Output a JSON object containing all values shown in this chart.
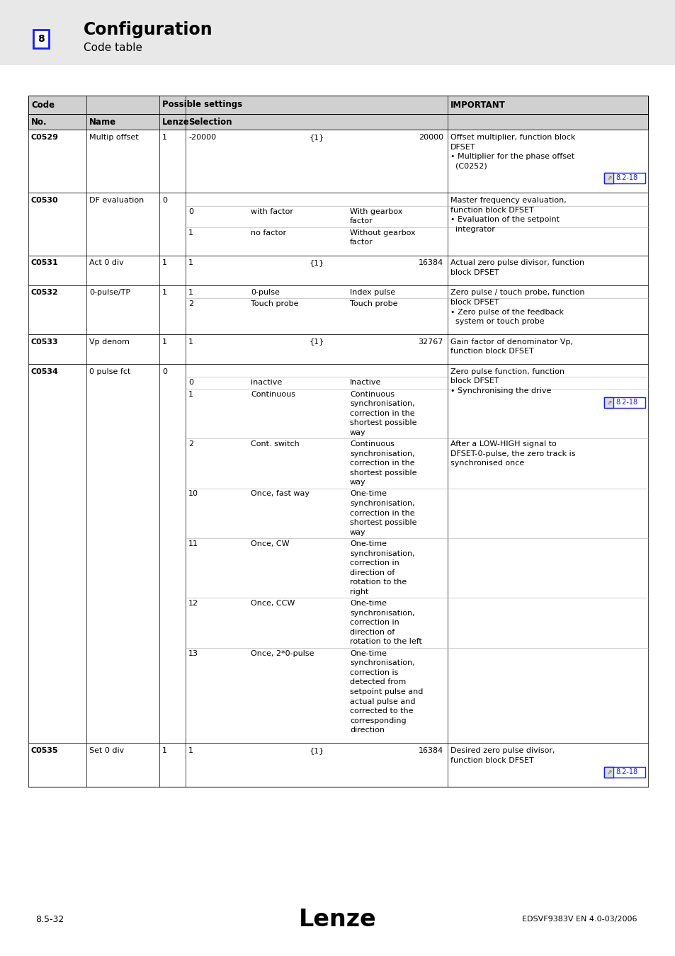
{
  "page_bg": "#e8e8e8",
  "content_bg": "#ffffff",
  "header_bg": "#d0d0d0",
  "link_color": "#1a1aff",
  "text_color": "#000000",
  "title": "Configuration",
  "subtitle": "Code table",
  "section_num": "8",
  "section_sub": "8.5",
  "footer_left": "8.5-32",
  "footer_center": "Lenze",
  "footer_right": "EDSVF9383V EN 4.0-03/2006",
  "rows": [
    {
      "code": "C0529",
      "name": "Multip offset",
      "lenze": "1",
      "sel_num": "-20000",
      "sel_mid": "{1}",
      "sel_val": "20000",
      "important": "Offset multiplier, function block\nDFSET\n• Multiplier for the phase offset\n  (C0252)",
      "link": "8.2-18",
      "subrows": []
    },
    {
      "code": "C0530",
      "name": "DF evaluation",
      "lenze": "0",
      "sel_num": "",
      "sel_mid": "",
      "sel_val": "",
      "important": "Master frequency evaluation,\nfunction block DFSET\n• Evaluation of the setpoint\n  integrator",
      "link": "",
      "subrows": [
        {
          "sel_num": "0",
          "sel_name": "with factor",
          "sel_desc": "With gearbox\nfactor",
          "important_extra": ""
        },
        {
          "sel_num": "1",
          "sel_name": "no factor",
          "sel_desc": "Without gearbox\nfactor",
          "important_extra": ""
        }
      ]
    },
    {
      "code": "C0531",
      "name": "Act 0 div",
      "lenze": "1",
      "sel_num": "1",
      "sel_mid": "{1}",
      "sel_val": "16384",
      "important": "Actual zero pulse divisor, function\nblock DFSET",
      "link": "",
      "subrows": []
    },
    {
      "code": "C0532",
      "name": "0-pulse/TP",
      "lenze": "1",
      "sel_num": "1",
      "sel_mid": "0-pulse",
      "sel_val": "Index pulse",
      "important": "Zero pulse / touch probe, function\nblock DFSET\n• Zero pulse of the feedback\n  system or touch probe",
      "link": "",
      "subrows": [
        {
          "sel_num": "2",
          "sel_name": "Touch probe",
          "sel_desc": "Touch probe",
          "important_extra": ""
        }
      ]
    },
    {
      "code": "C0533",
      "name": "Vp denom",
      "lenze": "1",
      "sel_num": "1",
      "sel_mid": "{1}",
      "sel_val": "32767",
      "important": "Gain factor of denominator Vp,\nfunction block DFSET",
      "link": "",
      "subrows": []
    },
    {
      "code": "C0534",
      "name": "0 pulse fct",
      "lenze": "0",
      "sel_num": "",
      "sel_mid": "",
      "sel_val": "",
      "important": "Zero pulse function, function\nblock DFSET\n• Synchronising the drive",
      "link": "8.2-18",
      "subrows": [
        {
          "sel_num": "0",
          "sel_name": "inactive",
          "sel_desc": "Inactive",
          "important_extra": ""
        },
        {
          "sel_num": "1",
          "sel_name": "Continuous",
          "sel_desc": "Continuous\nsynchronisation,\ncorrection in the\nshortest possible\nway",
          "important_extra": ""
        },
        {
          "sel_num": "2",
          "sel_name": "Cont. switch",
          "sel_desc": "Continuous\nsynchronisation,\ncorrection in the\nshortest possible\nway",
          "important_extra": "After a LOW-HIGH signal to\nDFSET-0-pulse, the zero track is\nsynchronised once"
        },
        {
          "sel_num": "10",
          "sel_name": "Once, fast way",
          "sel_desc": "One-time\nsynchronisation,\ncorrection in the\nshortest possible\nway",
          "important_extra": ""
        },
        {
          "sel_num": "11",
          "sel_name": "Once, CW",
          "sel_desc": "One-time\nsynchronisation,\ncorrection in\ndirection of\nrotation to the\nright",
          "important_extra": ""
        },
        {
          "sel_num": "12",
          "sel_name": "Once, CCW",
          "sel_desc": "One-time\nsynchronisation,\ncorrection in\ndirection of\nrotation to the left",
          "important_extra": ""
        },
        {
          "sel_num": "13",
          "sel_name": "Once, 2*0-pulse",
          "sel_desc": "One-time\nsynchronisation,\ncorrection is\ndetected from\nsetpoint pulse and\nactual pulse and\ncorrected to the\ncorresponding\ndirection",
          "important_extra": ""
        }
      ]
    },
    {
      "code": "C0535",
      "name": "Set 0 div",
      "lenze": "1",
      "sel_num": "1",
      "sel_mid": "{1}",
      "sel_val": "16384",
      "important": "Desired zero pulse divisor,\nfunction block DFSET",
      "link": "8.2-18",
      "subrows": []
    }
  ]
}
